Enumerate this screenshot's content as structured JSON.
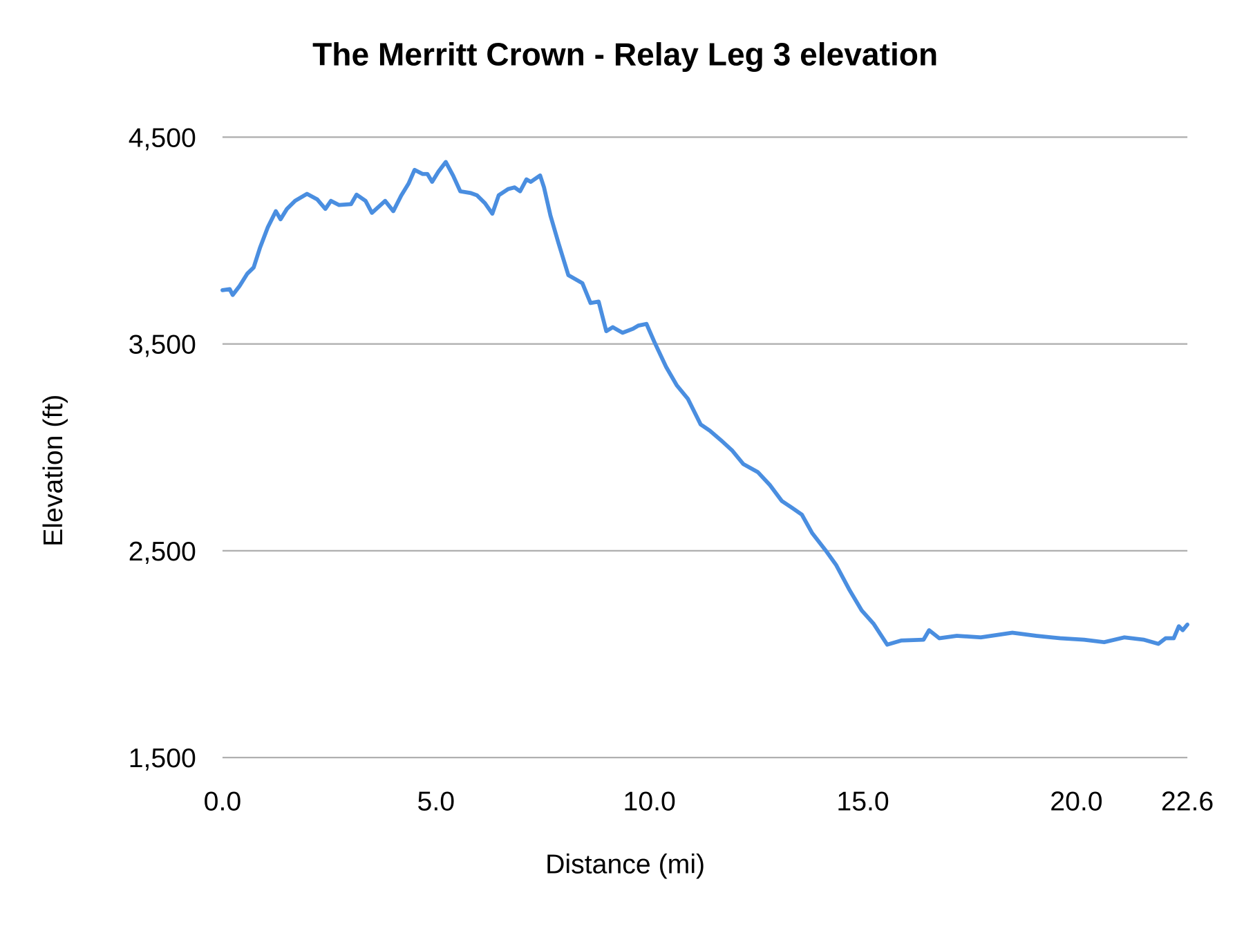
{
  "chart_data": {
    "type": "line",
    "title": "The Merritt Crown - Relay Leg 3 elevation",
    "xlabel": "Distance (mi)",
    "ylabel": "Elevation (ft)",
    "xlim": [
      0,
      22.6
    ],
    "ylim": [
      1500,
      4500
    ],
    "x_ticks": [
      "0.0",
      "5.0",
      "10.0",
      "15.0",
      "20.0",
      "22.6"
    ],
    "x_tick_values": [
      0,
      5,
      10,
      15,
      20,
      22.6
    ],
    "y_ticks": [
      "4,500",
      "3,500",
      "2,500",
      "1,500"
    ],
    "y_tick_values": [
      4500,
      3500,
      2500,
      1500
    ],
    "grid": "horizontal",
    "legend": "none",
    "line_color": "#4a8ee0",
    "series": [
      {
        "x": [
          0,
          0.17,
          0.24,
          0.4,
          0.58,
          0.73,
          0.88,
          1.06,
          1.25,
          1.36,
          1.51,
          1.7,
          1.98,
          2.22,
          2.41,
          2.54,
          2.73,
          3.01,
          3.14,
          3.35,
          3.5,
          3.81,
          4.0,
          4.19,
          4.36,
          4.5,
          4.69,
          4.8,
          4.91,
          5.06,
          5.23,
          5.4,
          5.57,
          5.81,
          5.96,
          6.15,
          6.32,
          6.47,
          6.69,
          6.84,
          6.97,
          7.12,
          7.22,
          7.44,
          7.53,
          7.68,
          7.87,
          8.1,
          8.43,
          8.62,
          8.81,
          8.99,
          9.14,
          9.37,
          9.61,
          9.74,
          9.93,
          10.11,
          10.39,
          10.64,
          10.9,
          11.2,
          11.42,
          11.7,
          11.94,
          12.2,
          12.54,
          12.82,
          13.1,
          13.38,
          13.57,
          13.81,
          14.13,
          14.37,
          14.69,
          14.97,
          15.25,
          15.57,
          15.9,
          16.42,
          16.55,
          16.79,
          17.2,
          17.76,
          18.5,
          19.06,
          19.62,
          20.18,
          20.65,
          21.12,
          21.58,
          21.92,
          22.09,
          22.28,
          22.4,
          22.49,
          22.6
        ],
        "y": [
          3760,
          3765,
          3737,
          3780,
          3840,
          3870,
          3966,
          4064,
          4142,
          4103,
          4153,
          4192,
          4226,
          4199,
          4153,
          4192,
          4172,
          4176,
          4222,
          4192,
          4134,
          4192,
          4142,
          4219,
          4276,
          4342,
          4322,
          4322,
          4284,
          4334,
          4380,
          4315,
          4238,
          4230,
          4219,
          4180,
          4130,
          4219,
          4249,
          4257,
          4238,
          4296,
          4284,
          4315,
          4257,
          4122,
          3987,
          3833,
          3794,
          3698,
          3705,
          3562,
          3581,
          3554,
          3573,
          3589,
          3597,
          3512,
          3389,
          3300,
          3235,
          3111,
          3080,
          3030,
          2984,
          2919,
          2880,
          2818,
          2741,
          2702,
          2675,
          2586,
          2501,
          2432,
          2309,
          2212,
          2147,
          2046,
          2066,
          2070,
          2116,
          2077,
          2089,
          2081,
          2104,
          2089,
          2077,
          2070,
          2058,
          2081,
          2070,
          2050,
          2077,
          2077,
          2135,
          2116,
          2143
        ]
      }
    ]
  }
}
